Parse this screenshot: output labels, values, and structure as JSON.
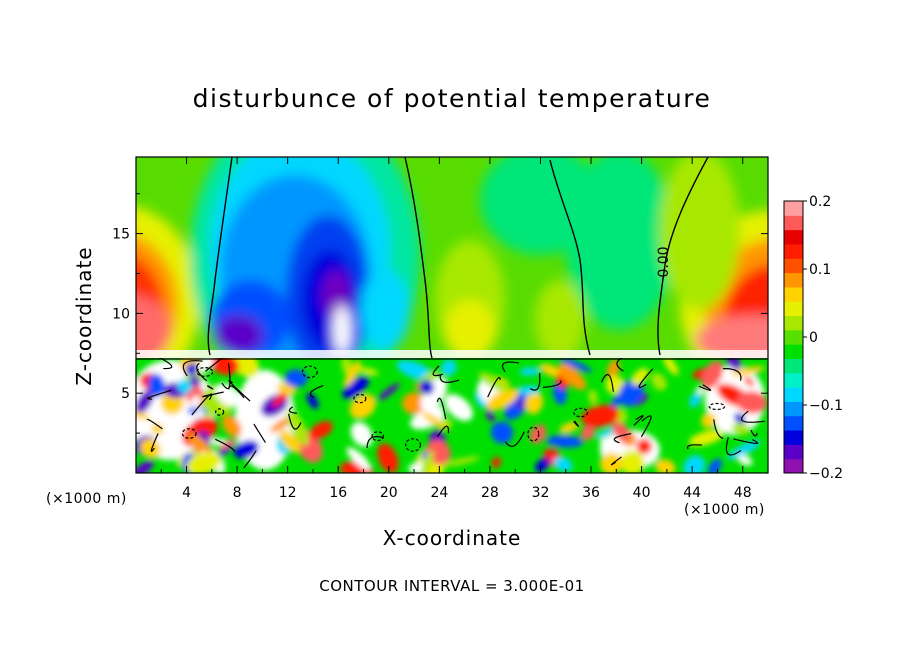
{
  "chart_data": {
    "type": "heatmap",
    "title": "disturbunce of potential temperature",
    "xlabel": "X-coordinate",
    "ylabel": "Z-coordinate",
    "x_unit_label": "(×1000 m)",
    "xlim": [
      0,
      50
    ],
    "ylim": [
      0,
      19.8
    ],
    "x_ticks": [
      "4",
      "8",
      "12",
      "16",
      "20",
      "24",
      "28",
      "32",
      "36",
      "40",
      "44",
      "48"
    ],
    "x_tick_values": [
      4,
      8,
      12,
      16,
      20,
      24,
      28,
      32,
      36,
      40,
      44,
      48
    ],
    "y_ticks": [
      "5",
      "10",
      "15"
    ],
    "y_tick_values": [
      5,
      10,
      15
    ],
    "colorbar": {
      "min": -0.2,
      "max": 0.2,
      "ticks": [
        "0.2",
        "0.1",
        "0",
        "−0.1",
        "−0.2"
      ],
      "tick_values": [
        0.2,
        0.1,
        0,
        -0.1,
        -0.2
      ],
      "colors": [
        "#9010b0",
        "#5a00c8",
        "#0000dc",
        "#0050ff",
        "#0096ff",
        "#00d7ff",
        "#00f0c8",
        "#00e678",
        "#00e000",
        "#58e000",
        "#a8e800",
        "#e6f000",
        "#ffd200",
        "#ff9600",
        "#ff5000",
        "#ff1e00",
        "#e60000",
        "#ff5a5a",
        "#ffa0a0"
      ]
    },
    "contour_label": "0.00",
    "contour_interval": "CONTOUR INTERVAL = 3.000E-01"
  }
}
